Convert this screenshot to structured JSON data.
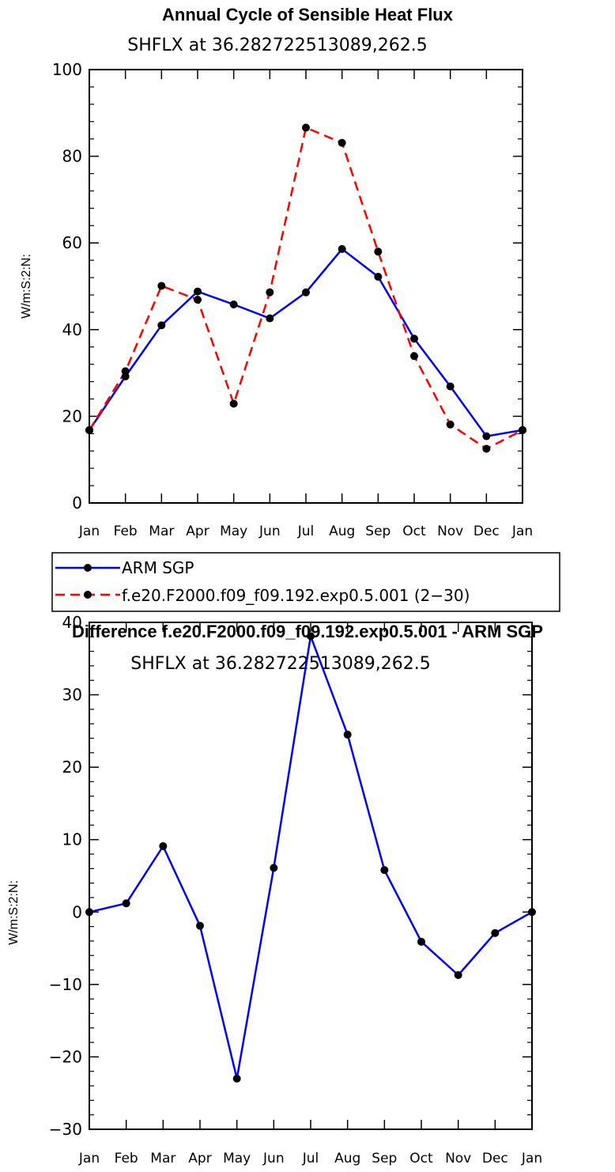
{
  "chart_data": [
    {
      "type": "line",
      "title": "Annual Cycle of Sensible Heat Flux",
      "subtitle": "SHFLX at 36.282722513089,262.5",
      "ylabel": "W/m:S:2:N:",
      "ylim": [
        0,
        100
      ],
      "yticks": [
        0,
        20,
        40,
        60,
        80,
        100
      ],
      "categories": [
        "Jan",
        "Feb",
        "Mar",
        "Apr",
        "May",
        "Jun",
        "Jul",
        "Aug",
        "Sep",
        "Oct",
        "Nov",
        "Dec",
        "Jan"
      ],
      "series": [
        {
          "name": "ARM SGP",
          "color": "#0000ff",
          "dash": "solid",
          "values": [
            16.8,
            29.2,
            41.0,
            48.8,
            45.8,
            42.6,
            48.6,
            58.6,
            52.2,
            37.9,
            26.9,
            15.4,
            16.8
          ]
        },
        {
          "name": "f.e20.F2000.f09_f09.192.exp0.5.001 (2−30)",
          "color": "#ff0000",
          "dash": "dashed",
          "values": [
            16.8,
            30.4,
            50.1,
            46.9,
            22.9,
            48.6,
            86.6,
            83.1,
            58.0,
            33.9,
            18.1,
            12.5,
            16.8
          ]
        }
      ],
      "legend": "below"
    },
    {
      "type": "line",
      "title": "Difference f.e20.F2000.f09_f09.192.exp0.5.001 - ARM SGP",
      "subtitle": "SHFLX at 36.282722513089,262.5",
      "ylabel": "W/m:S:2:N:",
      "ylim": [
        -30,
        40
      ],
      "yticks": [
        -30,
        -20,
        -10,
        0,
        10,
        20,
        30,
        40
      ],
      "ytick_labels": [
        "−30",
        "−20",
        "−10",
        "0",
        "10",
        "20",
        "30",
        "40"
      ],
      "categories": [
        "Jan",
        "Feb",
        "Mar",
        "Apr",
        "May",
        "Jun",
        "Jul",
        "Aug",
        "Sep",
        "Oct",
        "Nov",
        "Dec",
        "Jan"
      ],
      "series": [
        {
          "color": "#0000ff",
          "dash": "solid",
          "values": [
            0.0,
            1.2,
            9.1,
            -1.9,
            -23.0,
            6.1,
            38.1,
            24.5,
            5.8,
            -4.1,
            -8.7,
            -2.9,
            0.0
          ]
        }
      ]
    }
  ]
}
